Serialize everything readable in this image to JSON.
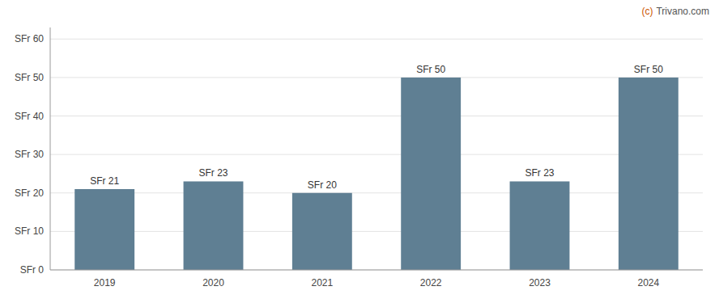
{
  "chart_data": {
    "type": "bar",
    "categories": [
      "2019",
      "2020",
      "2021",
      "2022",
      "2023",
      "2024"
    ],
    "values": [
      21,
      23,
      20,
      50,
      23,
      50
    ],
    "value_labels": [
      "SFr 21",
      "SFr 23",
      "SFr 20",
      "SFr 50",
      "SFr 23",
      "SFr 50"
    ],
    "data_labels": true,
    "color": "#5f7f93",
    "ylim": [
      0,
      63
    ],
    "yticks": [
      {
        "value": 0,
        "label": "SFr 0"
      },
      {
        "value": 10,
        "label": "SFr 10"
      },
      {
        "value": 20,
        "label": "SFr 20"
      },
      {
        "value": 30,
        "label": "SFr 30"
      },
      {
        "value": 40,
        "label": "SFr 40"
      },
      {
        "value": 50,
        "label": "SFr 50"
      },
      {
        "value": 60,
        "label": "SFr 60"
      }
    ],
    "grid": true,
    "annotations": [
      {
        "text": "(c)",
        "color": "#cc5500"
      },
      {
        "text": "Trivano.com",
        "color": "#555555"
      }
    ]
  }
}
